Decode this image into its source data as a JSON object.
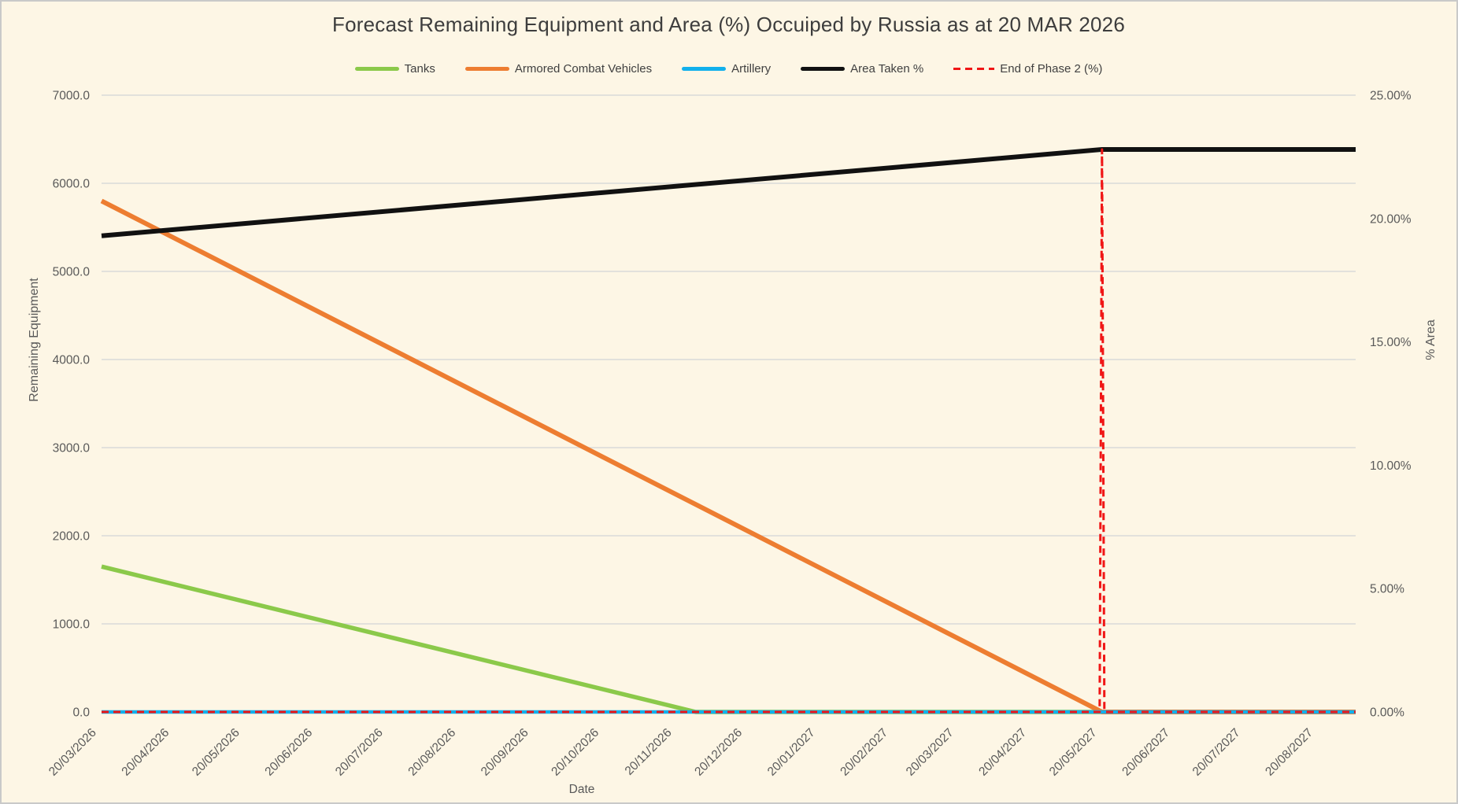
{
  "title": "Forecast Remaining Equipment and Area (%) Occuiped by Russia as at 20 MAR 2026",
  "legend": {
    "items": [
      {
        "label": "Tanks",
        "color": "#8bc94a",
        "dashed": false
      },
      {
        "label": "Armored Combat Vehicles",
        "color": "#ed7d31",
        "dashed": false
      },
      {
        "label": "Artillery",
        "color": "#12b0ec",
        "dashed": false
      },
      {
        "label": "Area Taken %",
        "color": "#111111",
        "dashed": false
      },
      {
        "label": "End of Phase 2 (%)",
        "color": "#f01616",
        "dashed": true
      }
    ]
  },
  "axes": {
    "x_title": "Date",
    "y_left_title": "Remaining Equipment",
    "y_right_title": "% Area"
  },
  "chart_data": {
    "type": "line",
    "title": "Forecast Remaining Equipment and Area (%) Occuiped by Russia as at 20 MAR 2026",
    "x_type": "date",
    "xlabel": "Date",
    "x_domain": [
      "2026-03-20",
      "2027-09-05"
    ],
    "grid": "horizontal",
    "legend_position": "top",
    "background_color": "#fdf6e5",
    "gridline_color": "#dadada",
    "axis_text_color": "#595959",
    "title_color": "#3d3d3d",
    "y_left": {
      "label": "Remaining Equipment",
      "range": [
        0,
        7000
      ],
      "tick_values": [
        0,
        1000,
        2000,
        3000,
        4000,
        5000,
        6000,
        7000
      ],
      "tick_labels": [
        "0.0",
        "1000.0",
        "2000.0",
        "3000.0",
        "4000.0",
        "5000.0",
        "6000.0",
        "7000.0"
      ]
    },
    "y_right": {
      "label": "% Area",
      "range": [
        0,
        25
      ],
      "tick_values": [
        0,
        5,
        10,
        15,
        20,
        25
      ],
      "tick_labels": [
        "0.00%",
        "5.00%",
        "10.00%",
        "15.00%",
        "20.00%",
        "25.00%"
      ]
    },
    "x_ticks": [
      {
        "date": "2026-03-20",
        "label": "20/03/2026"
      },
      {
        "date": "2026-04-20",
        "label": "20/04/2026"
      },
      {
        "date": "2026-05-20",
        "label": "20/05/2026"
      },
      {
        "date": "2026-06-20",
        "label": "20/06/2026"
      },
      {
        "date": "2026-07-20",
        "label": "20/07/2026"
      },
      {
        "date": "2026-08-20",
        "label": "20/08/2026"
      },
      {
        "date": "2026-09-20",
        "label": "20/09/2026"
      },
      {
        "date": "2026-10-20",
        "label": "20/10/2026"
      },
      {
        "date": "2026-11-20",
        "label": "20/11/2026"
      },
      {
        "date": "2026-12-20",
        "label": "20/12/2026"
      },
      {
        "date": "2027-01-20",
        "label": "20/01/2027"
      },
      {
        "date": "2027-02-20",
        "label": "20/02/2027"
      },
      {
        "date": "2027-03-20",
        "label": "20/03/2027"
      },
      {
        "date": "2027-04-20",
        "label": "20/04/2027"
      },
      {
        "date": "2027-05-20",
        "label": "20/05/2027"
      },
      {
        "date": "2027-06-20",
        "label": "20/06/2027"
      },
      {
        "date": "2027-07-20",
        "label": "20/07/2027"
      },
      {
        "date": "2027-08-20",
        "label": "20/08/2027"
      }
    ],
    "series": [
      {
        "name": "Tanks",
        "axis": "left",
        "color": "#8bc94a",
        "width": 5.5,
        "dashed": false,
        "points": [
          [
            "2026-03-20",
            1650
          ],
          [
            "2026-11-28",
            0
          ],
          [
            "2027-09-05",
            0
          ]
        ]
      },
      {
        "name": "Armored Combat Vehicles",
        "axis": "left",
        "color": "#ed7d31",
        "width": 6,
        "dashed": false,
        "points": [
          [
            "2026-03-20",
            5800
          ],
          [
            "2027-05-20",
            0
          ],
          [
            "2027-09-05",
            0
          ]
        ]
      },
      {
        "name": "Artillery",
        "axis": "left",
        "color": "#12b0ec",
        "width": 4.5,
        "dashed": false,
        "points": [
          [
            "2026-03-20",
            0
          ],
          [
            "2027-09-05",
            0
          ]
        ]
      },
      {
        "name": "Area Taken %",
        "axis": "right",
        "color": "#111111",
        "width": 6,
        "dashed": false,
        "points": [
          [
            "2026-03-20",
            19.3
          ],
          [
            "2027-05-20",
            22.8
          ],
          [
            "2027-09-05",
            22.8
          ]
        ]
      },
      {
        "name": "End of Phase 2 (%)",
        "axis": "right",
        "color": "#f01616",
        "width": 3,
        "dashed": true,
        "points": [
          [
            "2026-03-20",
            0
          ],
          [
            "2027-05-19",
            0
          ],
          [
            "2027-05-20",
            22.8
          ],
          [
            "2027-05-21",
            0
          ],
          [
            "2027-09-05",
            0
          ]
        ]
      }
    ]
  }
}
